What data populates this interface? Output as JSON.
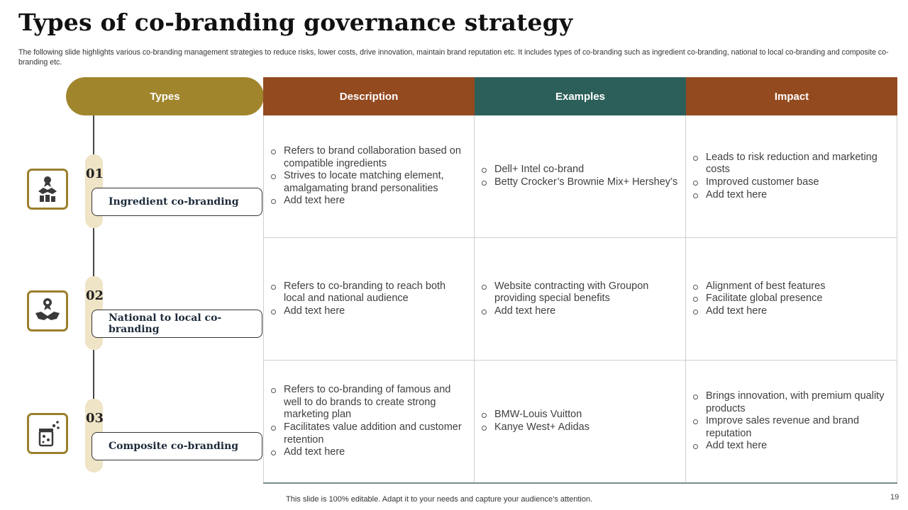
{
  "slide": {
    "title": "Types of co-branding governance strategy",
    "subtitle": "The following slide highlights various co-branding management strategies to reduce risks, lower costs, drive innovation, maintain brand reputation etc. It includes types of co-branding such as ingredient co-branding, national to local co-branding and composite co-branding etc.",
    "footer": "This slide is 100% editable. Adapt it to your needs and capture your audience’s attention.",
    "page_number": "19"
  },
  "colors": {
    "gold": "#a0852c",
    "brown": "#934a1f",
    "teal": "#2c5f5a",
    "pill": "#efe4c6"
  },
  "table": {
    "headers": {
      "types": "Types",
      "description": "Description",
      "examples": "Examples",
      "impact": "Impact"
    },
    "rows": [
      {
        "num": "01",
        "type": "Ingredient co-branding",
        "icon": "award-handshake-icon",
        "description": [
          "Refers to brand collaboration based on compatible ingredients",
          "Strives to locate matching element, amalgamating brand personalities",
          "Add text here"
        ],
        "examples": [
          "Dell+ Intel co-brand",
          "Betty Crocker’s Brownie Mix+ Hershey’s"
        ],
        "impact": [
          "Leads to risk reduction and marketing costs",
          "Improved customer base",
          "Add text here"
        ]
      },
      {
        "num": "02",
        "type": "National to local co-branding",
        "icon": "handshake-medal-icon",
        "description": [
          "Refers to co-branding to reach both local and national audience",
          "Add text here"
        ],
        "examples": [
          "Website contracting with Groupon providing special benefits",
          "Add text here"
        ],
        "impact": [
          "Alignment of best features",
          "Facilitate global presence",
          "Add text here"
        ]
      },
      {
        "num": "03",
        "type": "Composite co-branding",
        "icon": "ingredient-jar-icon",
        "description": [
          "Refers to co-branding of famous and well to do brands to create strong marketing plan",
          "Facilitates value addition and customer retention",
          "Add text here"
        ],
        "examples": [
          "BMW-Louis Vuitton",
          "Kanye West+ Adidas"
        ],
        "impact": [
          "Brings innovation, with premium quality products",
          "Improve sales revenue and brand reputation",
          "Add text here"
        ]
      }
    ]
  }
}
